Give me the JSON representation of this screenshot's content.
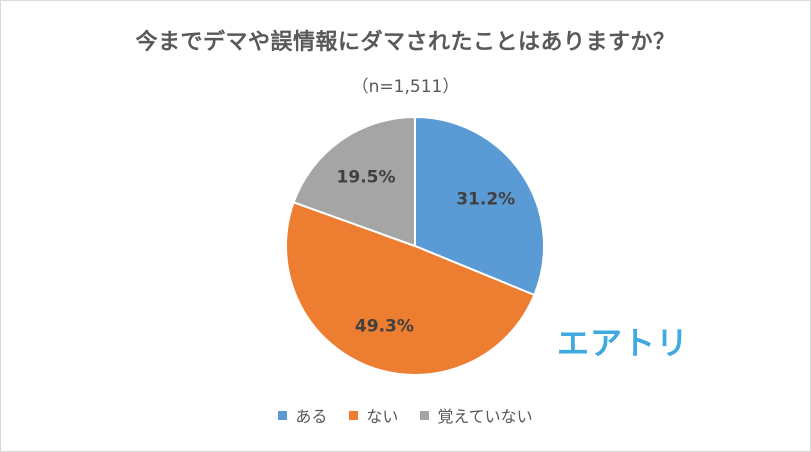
{
  "chart_data": {
    "type": "pie",
    "title": "今までデマや誤情報にダマされたことはありますか？",
    "subtitle": "（n=1,511）",
    "slices": [
      {
        "label": "ある",
        "value": 31.2,
        "value_label": "31.2%",
        "color": "#5b9bd5"
      },
      {
        "label": "ない",
        "value": 49.3,
        "value_label": "49.3%",
        "color": "#ed7d31"
      },
      {
        "label": "覚えていない",
        "value": 19.5,
        "value_label": "19.5%",
        "color": "#a5a5a5"
      }
    ],
    "legend_position": "bottom"
  },
  "logo_text": "エアトリ"
}
